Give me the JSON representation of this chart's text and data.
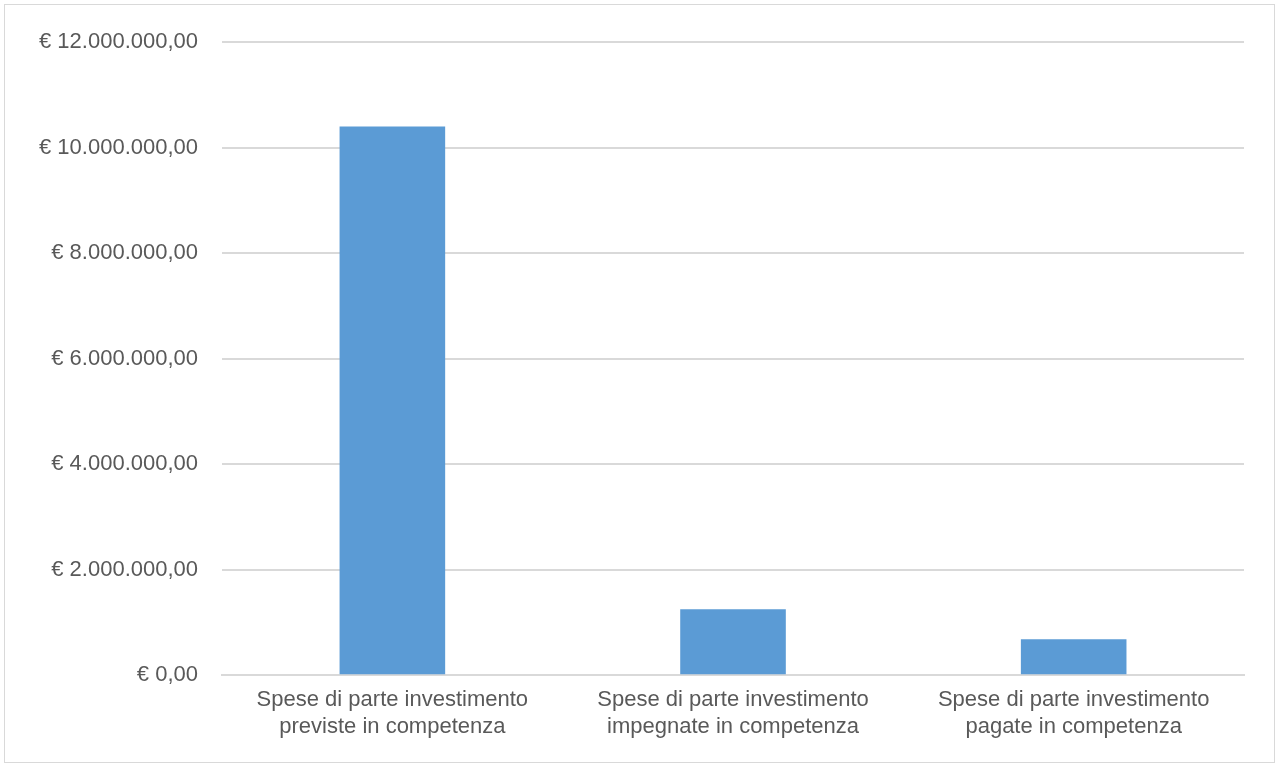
{
  "chart_data": {
    "type": "bar",
    "categories": [
      "Spese di parte investimento previste in competenza",
      "Spese di parte investimento impegnate in competenza",
      "Spese di parte investimento pagate in competenza"
    ],
    "values": [
      10400000,
      1250000,
      680000
    ],
    "color": "#5b9bd5",
    "ylim": [
      0,
      12000000
    ],
    "yticks": [
      {
        "value": 0,
        "label": "€ 0,00"
      },
      {
        "value": 2000000,
        "label": "€ 2.000.000,00"
      },
      {
        "value": 4000000,
        "label": "€ 4.000.000,00"
      },
      {
        "value": 6000000,
        "label": "€ 6.000.000,00"
      },
      {
        "value": 8000000,
        "label": "€ 8.000.000,00"
      },
      {
        "value": 10000000,
        "label": "€ 10.000.000,00"
      },
      {
        "value": 12000000,
        "label": "€ 12.000.000,00"
      }
    ],
    "grid": "y",
    "legend": false
  }
}
